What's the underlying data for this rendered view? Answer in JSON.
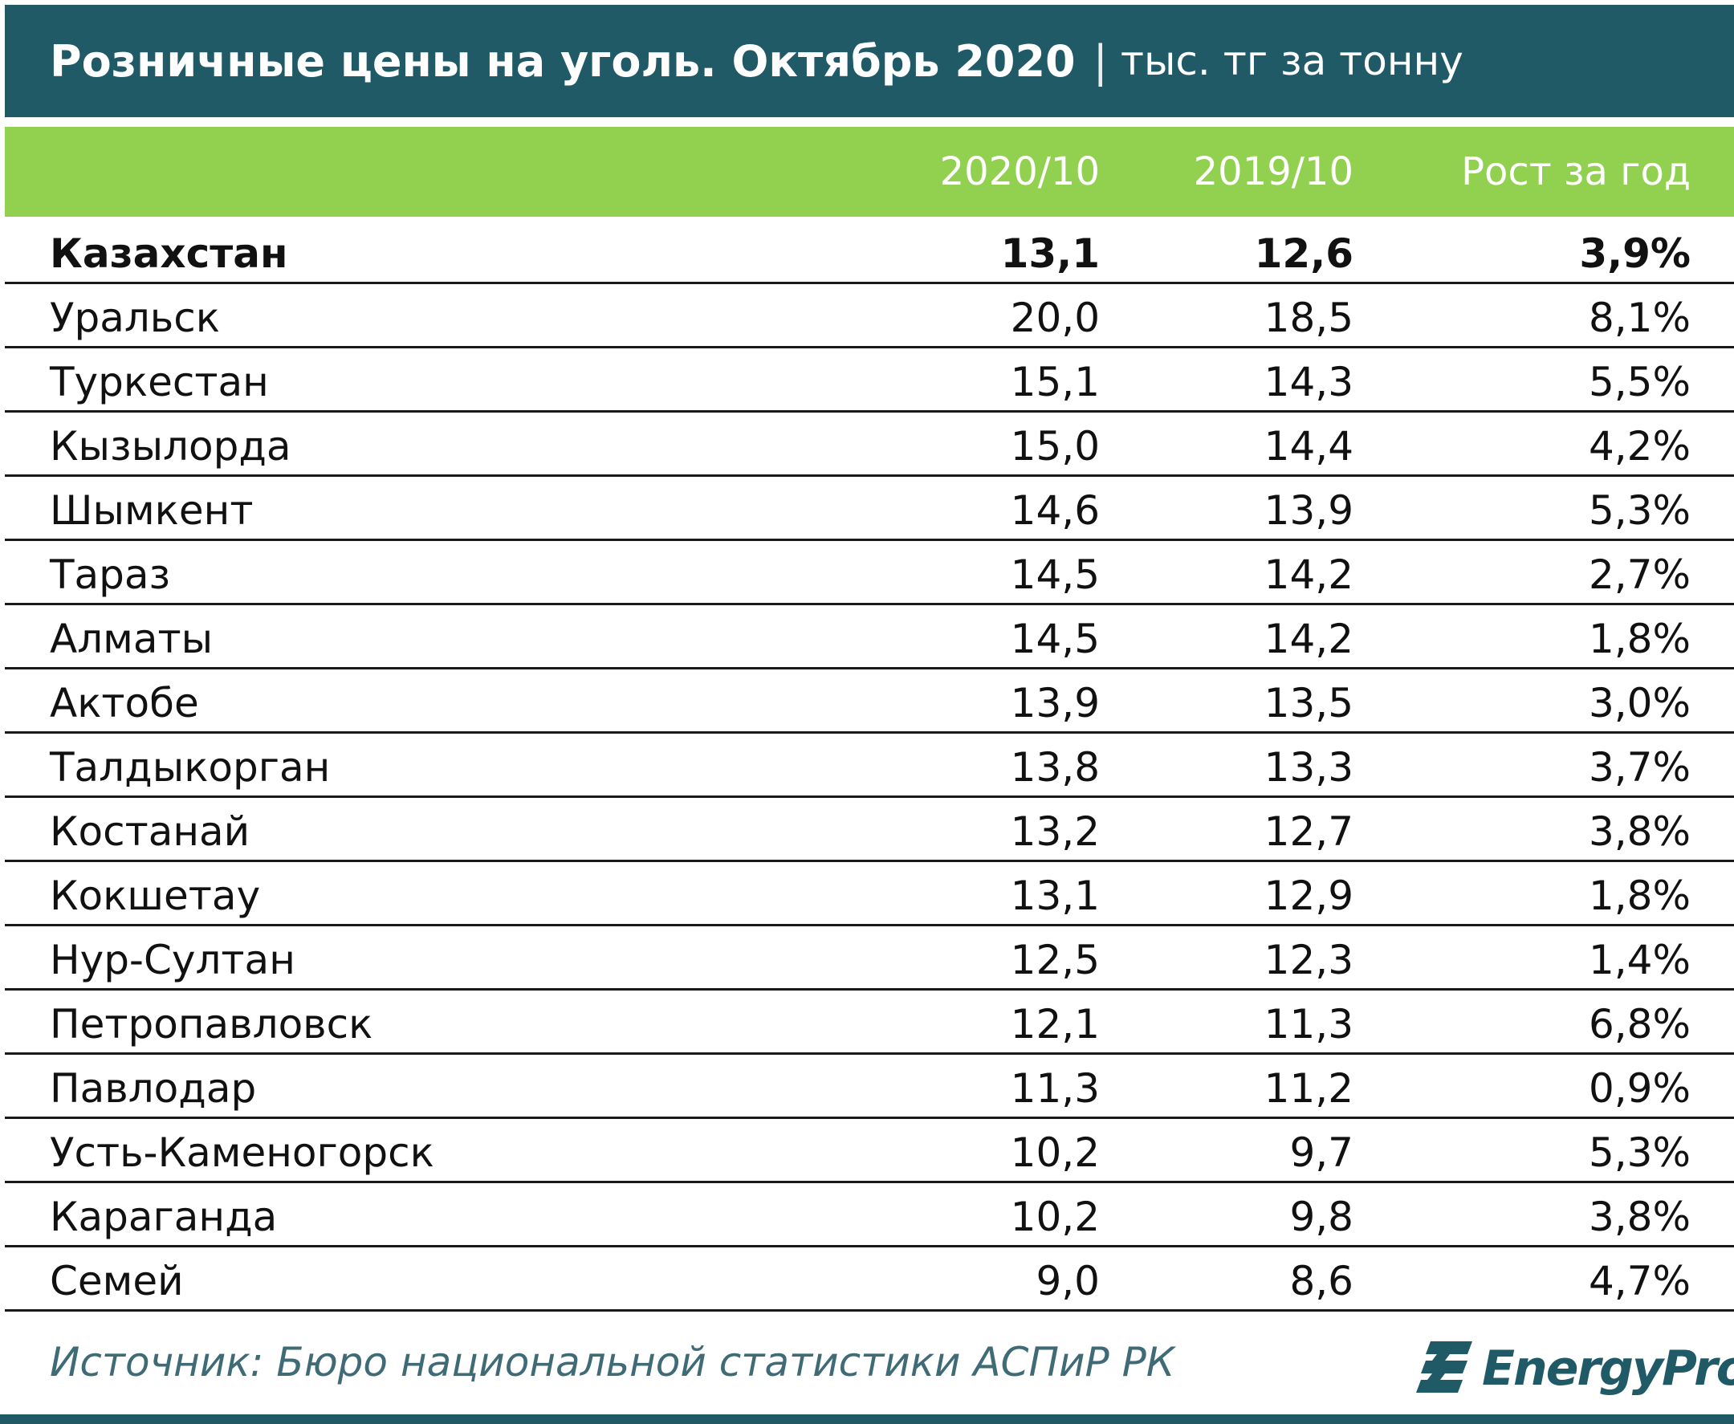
{
  "header": {
    "title": "Розничные цены на уголь. Октябрь 2020",
    "separator": "|",
    "unit": "тыс. тг за тонну"
  },
  "columns": [
    "2020/10",
    "2019/10",
    "Рост за год"
  ],
  "chart_data": {
    "type": "table",
    "title": "Розничные цены на уголь. Октябрь 2020",
    "subtitle": "тыс. тг за тонну",
    "columns": [
      "",
      "2020/10",
      "2019/10",
      "Рост за год"
    ],
    "rows": [
      {
        "name": "Казахстан",
        "v2020": "13,1",
        "v2019": "12,6",
        "growth": "3,9%"
      },
      {
        "name": "Уральск",
        "v2020": "20,0",
        "v2019": "18,5",
        "growth": "8,1%"
      },
      {
        "name": "Туркестан",
        "v2020": "15,1",
        "v2019": "14,3",
        "growth": "5,5%"
      },
      {
        "name": "Кызылорда",
        "v2020": "15,0",
        "v2019": "14,4",
        "growth": "4,2%"
      },
      {
        "name": "Шымкент",
        "v2020": "14,6",
        "v2019": "13,9",
        "growth": "5,3%"
      },
      {
        "name": "Тараз",
        "v2020": "14,5",
        "v2019": "14,2",
        "growth": "2,7%"
      },
      {
        "name": "Алматы",
        "v2020": "14,5",
        "v2019": "14,2",
        "growth": "1,8%"
      },
      {
        "name": "Актобе",
        "v2020": "13,9",
        "v2019": "13,5",
        "growth": "3,0%"
      },
      {
        "name": "Талдыкорган",
        "v2020": "13,8",
        "v2019": "13,3",
        "growth": "3,7%"
      },
      {
        "name": "Костанай",
        "v2020": "13,2",
        "v2019": "12,7",
        "growth": "3,8%"
      },
      {
        "name": "Кокшетау",
        "v2020": "13,1",
        "v2019": "12,9",
        "growth": "1,8%"
      },
      {
        "name": "Нур-Султан",
        "v2020": "12,5",
        "v2019": "12,3",
        "growth": "1,4%"
      },
      {
        "name": "Петропавловск",
        "v2020": "12,1",
        "v2019": "11,3",
        "growth": "6,8%"
      },
      {
        "name": "Павлодар",
        "v2020": "11,3",
        "v2019": "11,2",
        "growth": "0,9%"
      },
      {
        "name": "Усть-Каменогорск",
        "v2020": "10,2",
        "v2019": "9,7",
        "growth": "5,3%"
      },
      {
        "name": "Караганда",
        "v2020": "10,2",
        "v2019": "9,8",
        "growth": "3,8%"
      },
      {
        "name": "Семей",
        "v2020": "9,0",
        "v2019": "8,6",
        "growth": "4,7%"
      }
    ]
  },
  "footer": {
    "source": "Источник: Бюро национальной статистики АСПиР РК",
    "logo_text": "EnergyProm"
  },
  "colors": {
    "title_bg": "#1f5a66",
    "header_bg": "#92d050",
    "source_text": "#3f6b77"
  }
}
